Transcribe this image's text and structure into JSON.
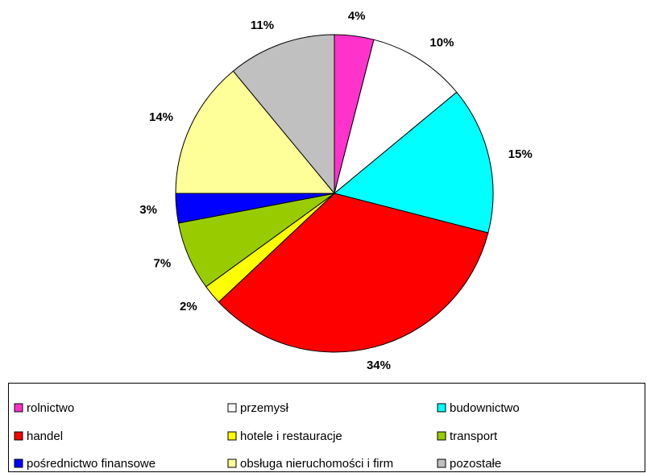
{
  "chart_data": {
    "type": "pie",
    "categories": [
      "rolnictwo",
      "przemysł",
      "budownictwo",
      "handel",
      "hotele i restauracje",
      "transport",
      "pośrednictwo finansowe",
      "obsługa nieruchomości i firm",
      "pozostałe"
    ],
    "values": [
      4,
      10,
      15,
      34,
      2,
      7,
      3,
      14,
      11
    ],
    "value_labels": [
      "4%",
      "10%",
      "15%",
      "34%",
      "2%",
      "7%",
      "3%",
      "14%",
      "11%"
    ],
    "colors": [
      "#ff33cc",
      "#ffffff",
      "#00ffff",
      "#ff0000",
      "#ffff00",
      "#99cc00",
      "#0000ff",
      "#ffff99",
      "#c0c0c0"
    ],
    "legend": "bottom"
  }
}
